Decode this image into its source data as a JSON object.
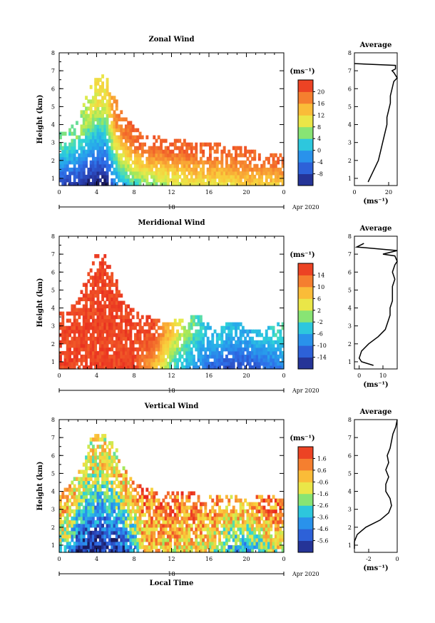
{
  "chart_data": [
    {
      "type": "heatmap",
      "title": "Zonal Wind",
      "ylabel": "Height (km)",
      "xlabel": "",
      "x_ticks": [
        "0",
        "4",
        "8",
        "12",
        "16",
        "20",
        "0"
      ],
      "y_ticks": [
        "1",
        "2",
        "3",
        "4",
        "5",
        "6",
        "7",
        "8"
      ],
      "xlim": [
        0,
        24
      ],
      "ylim": [
        0.6,
        8
      ],
      "day_label": "18",
      "month_label": "Apr 2020",
      "colorbar": {
        "unit": "(ms⁻¹)",
        "ticks": [
          "-8",
          "-4",
          "0",
          "4",
          "8",
          "12",
          "16",
          "20"
        ],
        "range": [
          -10,
          22
        ]
      },
      "profile": {
        "title": "Average",
        "xlabel": "(ms⁻¹)",
        "x_ticks": [
          "0",
          "20"
        ],
        "xlim": [
          0,
          25
        ],
        "y_ticks": [
          "1",
          "2",
          "3",
          "4",
          "5",
          "6",
          "7",
          "8"
        ],
        "points": [
          [
            8,
            0.8
          ],
          [
            10,
            1.2
          ],
          [
            12,
            1.6
          ],
          [
            14,
            2.0
          ],
          [
            15,
            2.4
          ],
          [
            16,
            2.8
          ],
          [
            17,
            3.2
          ],
          [
            18,
            3.6
          ],
          [
            19,
            4.0
          ],
          [
            19,
            4.4
          ],
          [
            20,
            4.8
          ],
          [
            21,
            5.2
          ],
          [
            21,
            5.6
          ],
          [
            22,
            6.0
          ],
          [
            23,
            6.4
          ],
          [
            25,
            6.6
          ],
          [
            23,
            6.9
          ],
          [
            22,
            7.0
          ],
          [
            24,
            7.1
          ],
          [
            24,
            7.3
          ],
          [
            0,
            7.4
          ]
        ]
      },
      "field": {
        "t0": 0,
        "t1": 24,
        "h0": 0.6,
        "h1": 8,
        "coverage": [
          [
            0,
            3.4
          ],
          [
            1,
            3.6
          ],
          [
            2,
            4.2
          ],
          [
            3,
            5.6
          ],
          [
            4,
            6.8
          ],
          [
            5,
            6.8
          ],
          [
            6,
            5.4
          ],
          [
            7,
            4.4
          ],
          [
            8,
            3.8
          ],
          [
            9,
            3.4
          ],
          [
            10,
            3.2
          ],
          [
            11,
            3.4
          ],
          [
            12,
            3.0
          ],
          [
            13,
            3.2
          ],
          [
            14,
            3.0
          ],
          [
            15,
            3.0
          ],
          [
            16,
            2.8
          ],
          [
            17,
            3.0
          ],
          [
            18,
            2.6
          ],
          [
            19,
            2.8
          ],
          [
            20,
            2.6
          ],
          [
            21,
            2.4
          ],
          [
            22,
            2.4
          ],
          [
            23,
            2.2
          ],
          [
            24,
            2.2
          ]
        ],
        "values": [
          [
            0,
            -6,
            4
          ],
          [
            2,
            -8,
            6
          ],
          [
            4,
            -10,
            10
          ],
          [
            5,
            -10,
            10
          ],
          [
            6,
            -2,
            16
          ],
          [
            8,
            4,
            18
          ],
          [
            10,
            6,
            18
          ],
          [
            12,
            8,
            18
          ],
          [
            14,
            10,
            18
          ],
          [
            16,
            10,
            18
          ],
          [
            18,
            10,
            18
          ],
          [
            20,
            12,
            18
          ],
          [
            22,
            12,
            18
          ],
          [
            24,
            12,
            18
          ]
        ]
      }
    },
    {
      "type": "heatmap",
      "title": "Meridional Wind",
      "ylabel": "Height (km)",
      "xlabel": "",
      "x_ticks": [
        "0",
        "4",
        "8",
        "12",
        "16",
        "20",
        "0"
      ],
      "y_ticks": [
        "1",
        "2",
        "3",
        "4",
        "5",
        "6",
        "7",
        "8"
      ],
      "xlim": [
        0,
        24
      ],
      "ylim": [
        0.6,
        8
      ],
      "day_label": "18",
      "month_label": "Apr 2020",
      "colorbar": {
        "unit": "(ms⁻¹)",
        "ticks": [
          "-14",
          "-10",
          "-6",
          "-2",
          "2",
          "6",
          "10",
          "14"
        ],
        "range": [
          -16,
          16
        ]
      },
      "profile": {
        "title": "Average",
        "xlabel": "(ms⁻¹)",
        "x_ticks": [
          "0",
          "10"
        ],
        "xlim": [
          -2,
          16
        ],
        "y_ticks": [
          "1",
          "2",
          "3",
          "4",
          "5",
          "6",
          "7",
          "8"
        ],
        "points": [
          [
            6,
            0.8
          ],
          [
            1,
            1.0
          ],
          [
            0,
            1.2
          ],
          [
            1,
            1.6
          ],
          [
            4,
            2.0
          ],
          [
            8,
            2.4
          ],
          [
            11,
            2.8
          ],
          [
            12,
            3.2
          ],
          [
            13,
            3.6
          ],
          [
            13,
            4.0
          ],
          [
            14,
            4.4
          ],
          [
            14,
            4.8
          ],
          [
            14,
            5.2
          ],
          [
            15,
            5.6
          ],
          [
            14,
            6.0
          ],
          [
            15,
            6.4
          ],
          [
            16,
            6.6
          ],
          [
            15,
            6.9
          ],
          [
            10,
            7.0
          ],
          [
            16,
            7.2
          ],
          [
            -1,
            7.4
          ],
          [
            2,
            7.6
          ]
        ]
      },
      "field": {
        "t0": 0,
        "t1": 24,
        "h0": 0.6,
        "h1": 8,
        "coverage": [
          [
            0,
            3.6
          ],
          [
            1,
            3.8
          ],
          [
            2,
            4.4
          ],
          [
            3,
            5.8
          ],
          [
            4,
            7.0
          ],
          [
            5,
            6.8
          ],
          [
            6,
            5.6
          ],
          [
            7,
            4.2
          ],
          [
            8,
            3.8
          ],
          [
            9,
            3.6
          ],
          [
            10,
            3.4
          ],
          [
            11,
            3.2
          ],
          [
            12,
            3.2
          ],
          [
            13,
            3.4
          ],
          [
            14,
            3.4
          ],
          [
            15,
            3.6
          ],
          [
            16,
            3.0
          ],
          [
            17,
            2.6
          ],
          [
            18,
            3.2
          ],
          [
            19,
            3.2
          ],
          [
            20,
            2.8
          ],
          [
            21,
            2.6
          ],
          [
            22,
            2.8
          ],
          [
            23,
            3.0
          ],
          [
            24,
            3.2
          ]
        ],
        "values": [
          [
            0,
            14,
            14
          ],
          [
            4,
            14,
            14
          ],
          [
            8,
            14,
            14
          ],
          [
            10,
            8,
            14
          ],
          [
            11,
            4,
            10
          ],
          [
            12,
            -2,
            6
          ],
          [
            13,
            -4,
            2
          ],
          [
            14,
            -6,
            0
          ],
          [
            15,
            -8,
            -2
          ],
          [
            16,
            -10,
            -4
          ],
          [
            18,
            -12,
            -4
          ],
          [
            20,
            -12,
            -6
          ],
          [
            22,
            -10,
            -4
          ],
          [
            24,
            -8,
            -2
          ]
        ]
      }
    },
    {
      "type": "heatmap",
      "title": "Vertical Wind",
      "ylabel": "Height (km)",
      "xlabel": "Local Time",
      "x_ticks": [
        "0",
        "4",
        "8",
        "12",
        "16",
        "20",
        "0"
      ],
      "y_ticks": [
        "1",
        "2",
        "3",
        "4",
        "5",
        "6",
        "7",
        "8"
      ],
      "xlim": [
        0,
        24
      ],
      "ylim": [
        0.6,
        8
      ],
      "day_label": "18",
      "month_label": "Apr 2020",
      "colorbar": {
        "unit": "(ms⁻¹)",
        "ticks": [
          "-5.6",
          "-4.6",
          "-3.6",
          "-2.6",
          "-1.6",
          "-0.6",
          "0.6",
          "1.6"
        ],
        "range": [
          -6,
          2
        ]
      },
      "profile": {
        "title": "Average",
        "xlabel": "(ms⁻¹)",
        "x_ticks": [
          "-2",
          "0"
        ],
        "xlim": [
          -3,
          0
        ],
        "y_ticks": [
          "1",
          "2",
          "3",
          "4",
          "5",
          "6",
          "7",
          "8"
        ],
        "points": [
          [
            -3,
            0.8
          ],
          [
            -3,
            1.2
          ],
          [
            -2.8,
            1.6
          ],
          [
            -2.2,
            2.0
          ],
          [
            -1.2,
            2.4
          ],
          [
            -0.6,
            2.8
          ],
          [
            -0.4,
            3.2
          ],
          [
            -0.5,
            3.6
          ],
          [
            -0.8,
            4.0
          ],
          [
            -0.8,
            4.4
          ],
          [
            -0.6,
            4.8
          ],
          [
            -0.8,
            5.2
          ],
          [
            -0.6,
            5.6
          ],
          [
            -0.7,
            6.0
          ],
          [
            -0.5,
            6.4
          ],
          [
            -0.4,
            6.8
          ],
          [
            -0.3,
            7.2
          ],
          [
            -0.1,
            7.6
          ],
          [
            0,
            8.0
          ]
        ]
      },
      "field": {
        "t0": 0,
        "t1": 24,
        "h0": 0.6,
        "h1": 8,
        "coverage": [
          [
            0,
            3.8
          ],
          [
            1,
            4.2
          ],
          [
            2,
            5.0
          ],
          [
            3,
            6.6
          ],
          [
            4,
            7.2
          ],
          [
            5,
            7.0
          ],
          [
            6,
            6.4
          ],
          [
            7,
            5.2
          ],
          [
            8,
            4.4
          ],
          [
            9,
            4.2
          ],
          [
            10,
            4.0
          ],
          [
            11,
            4.0
          ],
          [
            12,
            4.0
          ],
          [
            13,
            3.8
          ],
          [
            14,
            4.0
          ],
          [
            15,
            3.6
          ],
          [
            16,
            3.6
          ],
          [
            17,
            3.8
          ],
          [
            18,
            3.8
          ],
          [
            19,
            3.6
          ],
          [
            20,
            3.6
          ],
          [
            21,
            3.6
          ],
          [
            22,
            3.8
          ],
          [
            23,
            3.6
          ],
          [
            24,
            3.6
          ]
        ],
        "values": [
          [
            0,
            -2,
            0
          ],
          [
            1,
            -3,
            0
          ],
          [
            2,
            -5.6,
            -1
          ],
          [
            4,
            -5.6,
            -1
          ],
          [
            6,
            -5.6,
            -1
          ],
          [
            8,
            -4,
            0
          ],
          [
            9,
            -0.6,
            0.6
          ],
          [
            12,
            -0.6,
            0.6
          ],
          [
            16,
            -1,
            0.6
          ],
          [
            18,
            -3,
            0
          ],
          [
            20,
            -4,
            0
          ],
          [
            22,
            -2,
            0.6
          ],
          [
            24,
            -1,
            0.6
          ]
        ]
      }
    }
  ]
}
